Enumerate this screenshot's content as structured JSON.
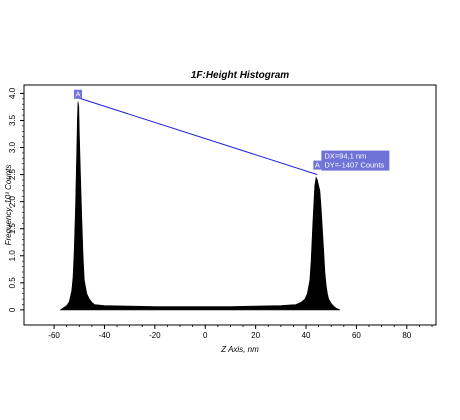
{
  "chart_data": {
    "type": "area",
    "title": "1F:Height Histogram",
    "xlabel": "Z Axis, nm",
    "ylabel": "Frequency, 10³ Counts",
    "xlim": [
      -64,
      90
    ],
    "ylim": [
      -0.15,
      4.1
    ],
    "xticks": [
      -60,
      -40,
      -20,
      0,
      20,
      40,
      60,
      80
    ],
    "xtick_labels": [
      "-60",
      "-40",
      "-20",
      "0",
      "20",
      "40",
      "60",
      "80"
    ],
    "yticks": [
      0,
      0.5,
      1.0,
      1.5,
      2.0,
      2.5,
      3.0,
      3.5,
      4.0
    ],
    "ytick_labels": [
      "0",
      "0.5",
      "1.0",
      "1.5",
      "2.0",
      "2.5",
      "3.0",
      "3.5",
      "4.0"
    ],
    "grid": false,
    "fill_color": "#000000",
    "series": [
      {
        "x": [
          -57.5,
          -56,
          -55,
          -54,
          -53,
          -52.5,
          -52,
          -51.5,
          -51,
          -50.7,
          -50.5,
          -50.2,
          -50,
          -49.5,
          -49,
          -48.5,
          -48,
          -47,
          -46,
          -45,
          -44,
          -40,
          -30,
          -20,
          -10,
          0,
          10,
          20,
          30,
          36,
          38,
          39.5,
          40.5,
          41.5,
          42,
          42.5,
          43,
          43.5,
          44,
          44.5,
          45,
          45.5,
          46,
          46.5,
          47,
          47.5,
          48,
          48.5,
          49,
          50,
          51,
          52,
          53.5
        ],
        "y": [
          0,
          0.05,
          0.08,
          0.15,
          0.35,
          0.6,
          1.1,
          1.9,
          3.0,
          3.6,
          3.85,
          3.75,
          3.3,
          2.5,
          1.7,
          1.0,
          0.55,
          0.3,
          0.2,
          0.14,
          0.1,
          0.08,
          0.07,
          0.06,
          0.06,
          0.06,
          0.06,
          0.07,
          0.08,
          0.1,
          0.14,
          0.2,
          0.3,
          0.55,
          0.9,
          1.4,
          1.9,
          2.3,
          2.45,
          2.4,
          2.3,
          2.2,
          1.9,
          1.5,
          1.1,
          0.7,
          0.45,
          0.3,
          0.2,
          0.12,
          0.07,
          0.03,
          0
        ]
      }
    ],
    "annotation": {
      "marker_label": "A",
      "start": {
        "x": -50.5,
        "y": 3.92
      },
      "end": {
        "x": 44.5,
        "y": 2.5
      },
      "dx_text": "DX=94,1 nm",
      "dy_text": "DY=-1407 Counts",
      "line_color": "#2222dd",
      "box_color": "#6f73d8"
    }
  }
}
